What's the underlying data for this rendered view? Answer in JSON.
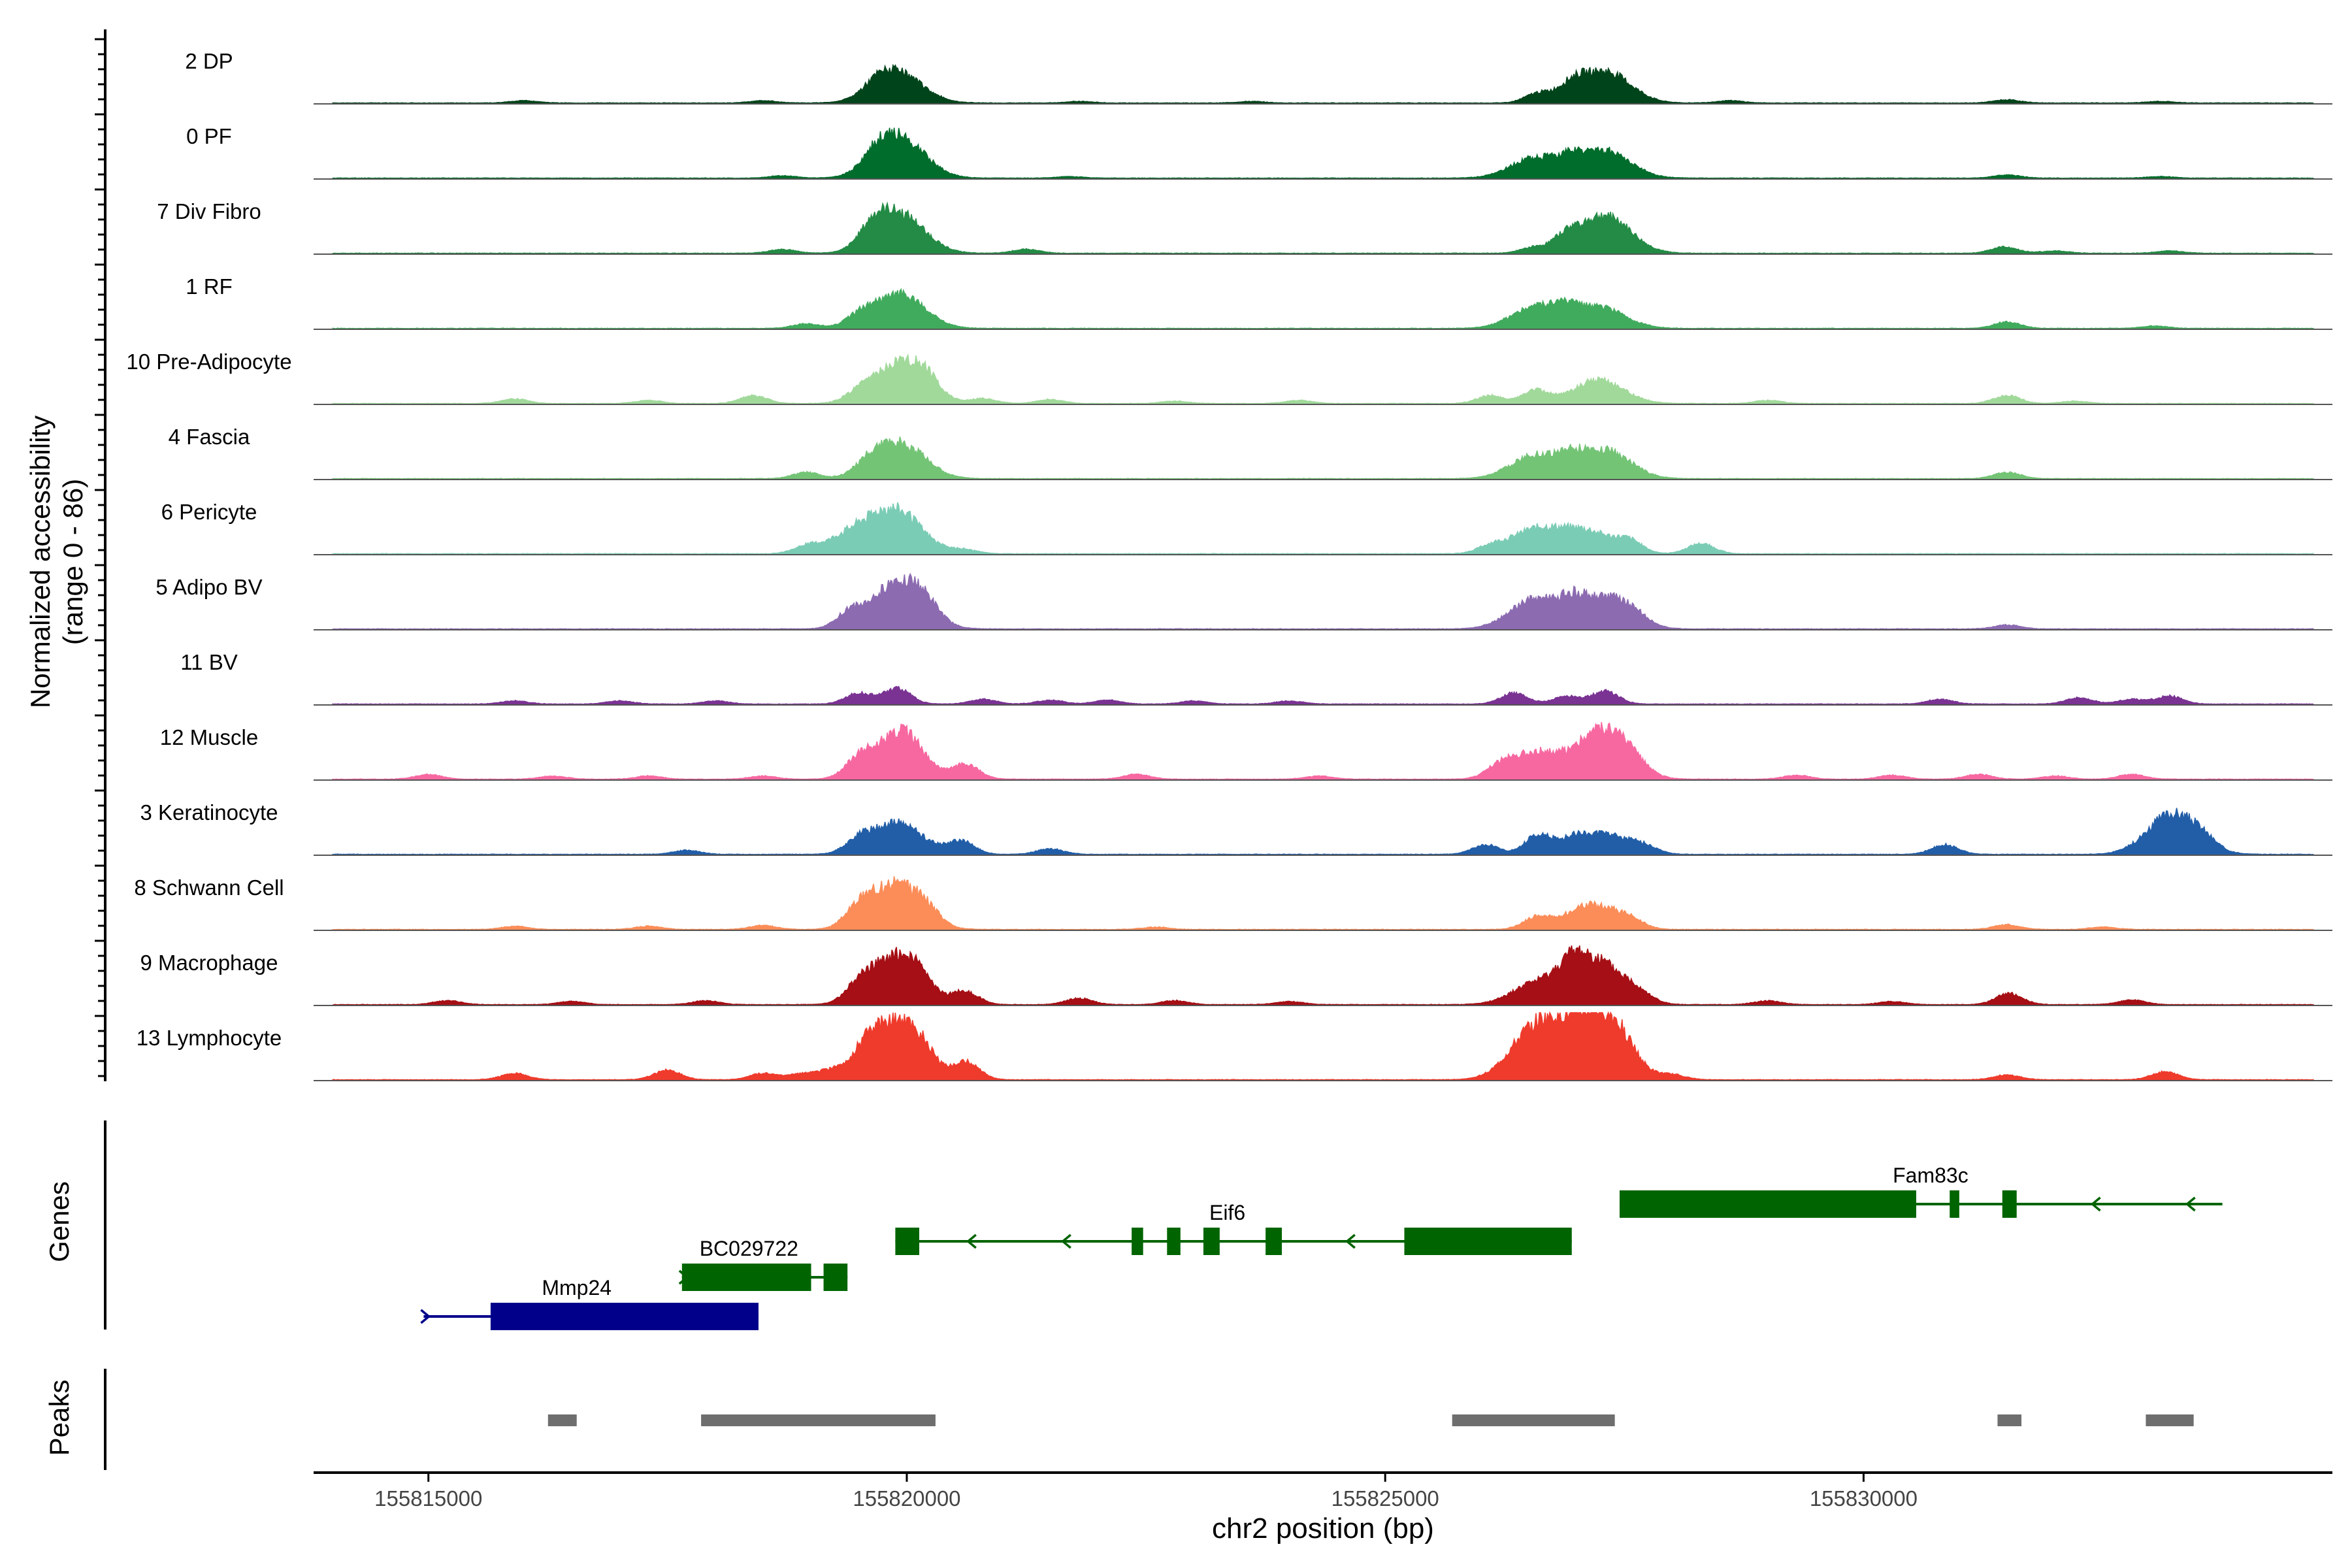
{
  "chart_data": {
    "type": "area",
    "title": "",
    "xlabel": "chr2 position (bp)",
    "ylabel_line1": "Normalized accessibility",
    "ylabel_line2": "(range 0 - 86)",
    "ylim": [
      0,
      86
    ],
    "xlim": [
      155813800,
      155834900
    ],
    "x_ticks": [
      155815000,
      155820000,
      155825000,
      155830000
    ],
    "x_tick_labels": [
      "155815000",
      "155820000",
      "155825000",
      "155830000"
    ],
    "tracks": [
      {
        "name": "2 DP",
        "color": "#00441b",
        "peaks": [
          [
            155819900,
            38
          ],
          [
            155819700,
            10
          ],
          [
            155827300,
            40
          ],
          [
            155826950,
            17
          ],
          [
            155826600,
            12
          ],
          [
            155816000,
            3
          ],
          [
            155818500,
            3
          ],
          [
            155821800,
            2
          ],
          [
            155823600,
            2
          ],
          [
            155828600,
            3
          ],
          [
            155831500,
            4
          ],
          [
            155833100,
            2
          ]
        ]
      },
      {
        "name": "0 PF",
        "color": "#006d2c",
        "peaks": [
          [
            155819920,
            52
          ],
          [
            155819700,
            14
          ],
          [
            155826580,
            26
          ],
          [
            155827300,
            34
          ],
          [
            155826950,
            12
          ],
          [
            155818700,
            3
          ],
          [
            155821700,
            2
          ],
          [
            155831500,
            4
          ],
          [
            155833100,
            2
          ]
        ]
      },
      {
        "name": "7 Div Fibro",
        "color": "#238b45",
        "peaks": [
          [
            155819920,
            50
          ],
          [
            155819650,
            20
          ],
          [
            155827300,
            48
          ],
          [
            155826900,
            17
          ],
          [
            155826550,
            7
          ],
          [
            155818700,
            5
          ],
          [
            155821250,
            5
          ],
          [
            155831470,
            8
          ],
          [
            155832000,
            3
          ],
          [
            155833200,
            3
          ]
        ]
      },
      {
        "name": "1 RF",
        "color": "#41ab5d",
        "peaks": [
          [
            155819920,
            44
          ],
          [
            155819500,
            12
          ],
          [
            155818950,
            6
          ],
          [
            155826590,
            28
          ],
          [
            155827250,
            26
          ],
          [
            155826900,
            10
          ],
          [
            155831500,
            8
          ],
          [
            155833050,
            3
          ]
        ]
      },
      {
        "name": "10 Pre-Adipocyte",
        "color": "#a1d99b",
        "peaks": [
          [
            155819930,
            52
          ],
          [
            155820200,
            16
          ],
          [
            155819500,
            10
          ],
          [
            155818400,
            10
          ],
          [
            155827230,
            30
          ],
          [
            155826570,
            16
          ],
          [
            155826100,
            10
          ],
          [
            155831500,
            10
          ],
          [
            155815900,
            6
          ],
          [
            155817300,
            4
          ],
          [
            155820800,
            6
          ],
          [
            155821500,
            5
          ],
          [
            155822800,
            3
          ],
          [
            155824100,
            4
          ],
          [
            155829000,
            4
          ],
          [
            155832200,
            3
          ]
        ]
      },
      {
        "name": "4 Fascia",
        "color": "#74c476",
        "peaks": [
          [
            155819920,
            46
          ],
          [
            155819600,
            12
          ],
          [
            155818950,
            8
          ],
          [
            155826580,
            30
          ],
          [
            155827300,
            36
          ],
          [
            155826950,
            14
          ],
          [
            155831500,
            8
          ]
        ]
      },
      {
        "name": "6 Pericyte",
        "color": "#7bccb5",
        "peaks": [
          [
            155819900,
            52
          ],
          [
            155819450,
            26
          ],
          [
            155826570,
            30
          ],
          [
            155827100,
            28
          ],
          [
            155827550,
            14
          ],
          [
            155828300,
            13
          ],
          [
            155818950,
            8
          ],
          [
            155820600,
            5
          ],
          [
            155826100,
            8
          ]
        ]
      },
      {
        "name": "5 Adipo BV",
        "color": "#8c6bb1",
        "peaks": [
          [
            155819920,
            62
          ],
          [
            155819400,
            18
          ],
          [
            155820200,
            12
          ],
          [
            155826570,
            38
          ],
          [
            155827300,
            40
          ],
          [
            155826950,
            18
          ],
          [
            155827600,
            8
          ],
          [
            155831500,
            5
          ]
        ]
      },
      {
        "name": "11 BV",
        "color": "#7a3393",
        "peaks": [
          [
            155819900,
            20
          ],
          [
            155819500,
            14
          ],
          [
            155826350,
            14
          ],
          [
            155827300,
            16
          ],
          [
            155826900,
            10
          ],
          [
            155815900,
            4
          ],
          [
            155817000,
            4
          ],
          [
            155818000,
            4
          ],
          [
            155820800,
            6
          ],
          [
            155821500,
            5
          ],
          [
            155822100,
            5
          ],
          [
            155823000,
            4
          ],
          [
            155824000,
            4
          ],
          [
            155830800,
            6
          ],
          [
            155832250,
            8
          ],
          [
            155832800,
            6
          ],
          [
            155833200,
            10
          ]
        ]
      },
      {
        "name": "12 Muscle",
        "color": "#f768a1",
        "peaks": [
          [
            155819900,
            50
          ],
          [
            155819500,
            20
          ],
          [
            155820000,
            14
          ],
          [
            155820620,
            18
          ],
          [
            155827280,
            64
          ],
          [
            155826580,
            34
          ],
          [
            155826200,
            12
          ],
          [
            155827600,
            8
          ],
          [
            155815000,
            6
          ],
          [
            155816300,
            4
          ],
          [
            155817300,
            4
          ],
          [
            155818500,
            4
          ],
          [
            155822400,
            6
          ],
          [
            155824300,
            4
          ],
          [
            155829300,
            5
          ],
          [
            155830300,
            5
          ],
          [
            155831200,
            6
          ],
          [
            155832000,
            4
          ],
          [
            155832800,
            6
          ]
        ]
      },
      {
        "name": "3 Keratinocyte",
        "color": "#225ea8",
        "peaks": [
          [
            155819900,
            40
          ],
          [
            155819500,
            14
          ],
          [
            155820570,
            16
          ],
          [
            155821500,
            7
          ],
          [
            155826600,
            24
          ],
          [
            155827280,
            26
          ],
          [
            155826950,
            12
          ],
          [
            155826050,
            12
          ],
          [
            155827700,
            8
          ],
          [
            155830850,
            12
          ],
          [
            155833230,
            52
          ],
          [
            155833550,
            8
          ],
          [
            155817700,
            5
          ]
        ]
      },
      {
        "name": "8 Schwann Cell",
        "color": "#fc8d59",
        "peaks": [
          [
            155819880,
            58
          ],
          [
            155819500,
            20
          ],
          [
            155820200,
            12
          ],
          [
            155826580,
            14
          ],
          [
            155827150,
            32
          ],
          [
            155827550,
            10
          ],
          [
            155815900,
            4
          ],
          [
            155817300,
            4
          ],
          [
            155818500,
            5
          ],
          [
            155822600,
            3
          ],
          [
            155831500,
            6
          ],
          [
            155832500,
            3
          ]
        ]
      },
      {
        "name": "9 Macrophage",
        "color": "#a50f15",
        "peaks": [
          [
            155819880,
            60
          ],
          [
            155819500,
            16
          ],
          [
            155820100,
            14
          ],
          [
            155820610,
            16
          ],
          [
            155821800,
            8
          ],
          [
            155826600,
            28
          ],
          [
            155827220,
            54
          ],
          [
            155826950,
            24
          ],
          [
            155827650,
            10
          ],
          [
            155831520,
            14
          ],
          [
            155815200,
            5
          ],
          [
            155816500,
            4
          ],
          [
            155817900,
            5
          ],
          [
            155822800,
            5
          ],
          [
            155824000,
            4
          ],
          [
            155829000,
            5
          ],
          [
            155830300,
            4
          ],
          [
            155832800,
            6
          ]
        ]
      },
      {
        "name": "13 Lymphocyte",
        "color": "#ef3b2c",
        "peaks": [
          [
            155819860,
            72
          ],
          [
            155819550,
            18
          ],
          [
            155820150,
            20
          ],
          [
            155820620,
            22
          ],
          [
            155826560,
            58
          ],
          [
            155827260,
            74
          ],
          [
            155826900,
            32
          ],
          [
            155827500,
            12
          ],
          [
            155815900,
            8
          ],
          [
            155817500,
            12
          ],
          [
            155818500,
            8
          ],
          [
            155818900,
            7
          ],
          [
            155819200,
            10
          ],
          [
            155828000,
            6
          ],
          [
            155831500,
            6
          ],
          [
            155833150,
            10
          ]
        ]
      }
    ],
    "genes_label": "Genes",
    "genes": [
      {
        "name": "Mmp24",
        "strand": "+",
        "row": 0,
        "color": "#00008b",
        "line": [
          155814950,
          155818450
        ],
        "exons": [
          [
            155815650,
            155818450
          ]
        ]
      },
      {
        "name": "BC029722",
        "strand": "+",
        "row": 1,
        "color": "#006400",
        "line": [
          155817650,
          155819380
        ],
        "exons": [
          [
            155817650,
            155819000
          ],
          [
            155819130,
            155819380
          ]
        ]
      },
      {
        "name": "Eif6",
        "strand": "-",
        "row": 2,
        "color": "#006400",
        "line": [
          155819880,
          155826950
        ],
        "exons": [
          [
            155819880,
            155820130
          ],
          [
            155822350,
            155822470
          ],
          [
            155822720,
            155822860
          ],
          [
            155823100,
            155823270
          ],
          [
            155823750,
            155823920
          ],
          [
            155825200,
            155826950
          ]
        ]
      },
      {
        "name": "Fam83c",
        "strand": "-",
        "row": 3,
        "color": "#006400",
        "line": [
          155827450,
          155833750
        ],
        "exons": [
          [
            155827450,
            155830550
          ],
          [
            155830900,
            155831000
          ],
          [
            155831450,
            155831600
          ]
        ]
      }
    ],
    "peaks_label": "Peaks",
    "peak_regions": [
      [
        155816250,
        155816550
      ],
      [
        155817850,
        155820300
      ],
      [
        155825700,
        155827400
      ],
      [
        155831400,
        155831650
      ],
      [
        155832950,
        155833450
      ]
    ]
  }
}
